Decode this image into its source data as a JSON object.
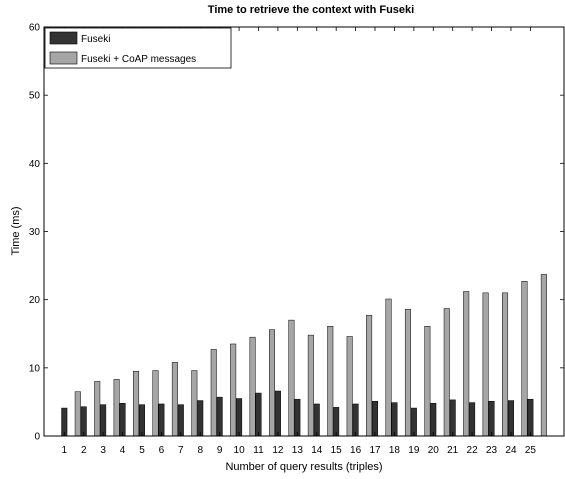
{
  "chart_data": {
    "type": "bar",
    "title": "Time to retrieve the context with Fuseki",
    "xlabel": "Number of query results (triples)",
    "ylabel": "Time (ms)",
    "ylim": [
      0,
      60
    ],
    "yticks": [
      0,
      10,
      20,
      30,
      40,
      50,
      60
    ],
    "grid": false,
    "legend_position": "top-left",
    "categories": [
      "1",
      "2",
      "3",
      "4",
      "5",
      "6",
      "7",
      "8",
      "9",
      "10",
      "11",
      "12",
      "13",
      "14",
      "15",
      "16",
      "17",
      "18",
      "19",
      "20",
      "21",
      "22",
      "23",
      "24",
      "25"
    ],
    "series": [
      {
        "name": "Fuseki",
        "color": "#333333",
        "values": [
          4.1,
          4.3,
          4.6,
          4.8,
          4.6,
          4.7,
          4.6,
          5.2,
          5.7,
          5.5,
          6.3,
          6.6,
          5.4,
          4.7,
          4.2,
          4.7,
          5.1,
          4.9,
          4.1,
          4.8,
          5.3,
          4.9,
          5.1,
          5.2,
          5.4
        ]
      },
      {
        "name": "Fuseki + CoAP messages",
        "color": "#a6a6a6",
        "values": [
          6.5,
          8.0,
          8.3,
          9.5,
          9.6,
          10.8,
          9.6,
          12.7,
          13.5,
          14.5,
          15.6,
          17.0,
          14.8,
          16.1,
          14.6,
          17.7,
          20.1,
          18.6,
          16.1,
          18.7,
          21.2,
          21.0,
          21.0,
          22.7,
          23.7
        ]
      }
    ]
  }
}
